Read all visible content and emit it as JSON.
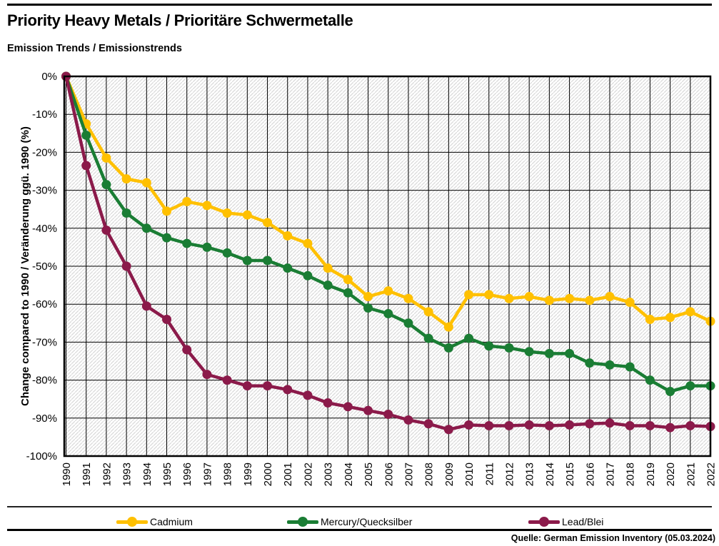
{
  "header": {
    "title": "Priority Heavy Metals / Prioritäre Schwermetalle",
    "subtitle": "Emission Trends / Emissionstrends"
  },
  "footer": {
    "source": "Quelle: German Emission Inventory (05.03.2024)"
  },
  "chart_data": {
    "type": "line",
    "title": "Priority Heavy Metals / Prioritäre Schwermetalle",
    "subtitle": "Emission Trends / Emissionstrends",
    "y_axis_title": "Change compared to 1990 / Veränderung ggü. 1990 (%)",
    "xlabel": "",
    "ylabel": "Change compared to 1990 / Veränderung ggü. 1990 (%)",
    "ylim": [
      -100,
      0
    ],
    "y_tick_step": 10,
    "y_tick_suffix": "%",
    "grid": true,
    "background_hatch": true,
    "legend_position": "bottom",
    "categories": [
      1990,
      1991,
      1992,
      1993,
      1994,
      1995,
      1996,
      1997,
      1998,
      1999,
      2000,
      2001,
      2002,
      2003,
      2004,
      2005,
      2006,
      2007,
      2008,
      2009,
      2010,
      2011,
      2012,
      2013,
      2014,
      2015,
      2016,
      2017,
      2018,
      2019,
      2020,
      2021,
      2022
    ],
    "series": [
      {
        "name": "Cadmium",
        "color": "#FFC000",
        "values": [
          0,
          -12.5,
          -21.5,
          -27,
          -28,
          -35.5,
          -33,
          -34,
          -36,
          -36.5,
          -38.5,
          -42,
          -44,
          -50.5,
          -53.5,
          -58,
          -56.5,
          -58.5,
          -62,
          -66,
          -57.5,
          -57.5,
          -58.5,
          -58,
          -59,
          -58.5,
          -59,
          -58,
          -59.5,
          -64,
          -63.5,
          -62,
          -64.5
        ]
      },
      {
        "name": "Mercury/Quecksilber",
        "color": "#1A7D34",
        "values": [
          0,
          -15.5,
          -28.5,
          -36,
          -40,
          -42.5,
          -44,
          -45,
          -46.5,
          -48.5,
          -48.5,
          -50.5,
          -52.5,
          -55,
          -57,
          -61,
          -62.5,
          -65,
          -69,
          -71.5,
          -69,
          -71,
          -71.5,
          -72.5,
          -73,
          -73,
          -75.5,
          -76,
          -76.5,
          -80,
          -83,
          -81.5,
          -81.5
        ]
      },
      {
        "name": "Lead/Blei",
        "color": "#8B1A4A",
        "values": [
          0,
          -23.5,
          -40.5,
          -50,
          -60.5,
          -64,
          -72,
          -78.5,
          -80,
          -81.5,
          -81.5,
          -82.5,
          -84,
          -86,
          -87,
          -88,
          -89,
          -90.5,
          -91.5,
          -93,
          -91.8,
          -92,
          -92,
          -91.8,
          -92,
          -91.8,
          -91.5,
          -91.3,
          -92,
          -92,
          -92.5,
          -92,
          -92.2
        ]
      }
    ]
  }
}
